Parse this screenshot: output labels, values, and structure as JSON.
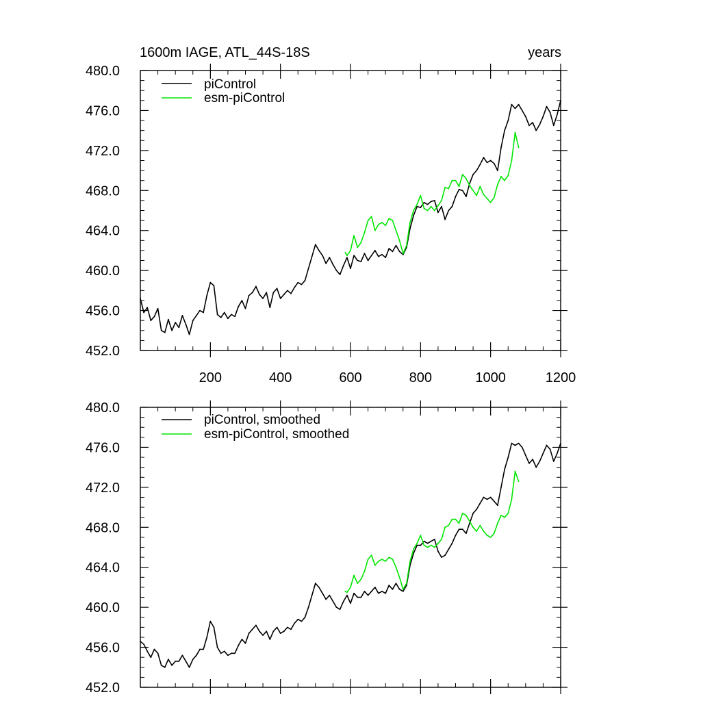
{
  "colors": {
    "picontrol": "#000000",
    "esm_picontrol": "#00e600"
  },
  "chart_data": [
    {
      "type": "line",
      "title_left": "1600m IAGE, ATL_44S-18S",
      "title_right": "years",
      "xlim": [
        0,
        1200
      ],
      "ylim": [
        452,
        480
      ],
      "xticks": [
        200,
        400,
        600,
        800,
        1000,
        1200
      ],
      "xtick_labels": [
        "200",
        "400",
        "600",
        "800",
        "1000",
        "1200"
      ],
      "yticks": [
        452,
        456,
        460,
        464,
        468,
        472,
        476,
        480
      ],
      "ytick_labels": [
        "452.0",
        "456.0",
        "460.0",
        "464.0",
        "468.0",
        "472.0",
        "476.0",
        "480.0"
      ],
      "legend_position": "top-left",
      "series": [
        {
          "name": "piControl",
          "color": "#000000",
          "x": [
            0,
            10,
            20,
            30,
            40,
            50,
            60,
            70,
            80,
            90,
            100,
            110,
            120,
            130,
            140,
            150,
            160,
            170,
            180,
            190,
            200,
            210,
            220,
            230,
            240,
            250,
            260,
            270,
            280,
            290,
            300,
            310,
            320,
            330,
            340,
            350,
            360,
            370,
            380,
            390,
            400,
            410,
            420,
            430,
            440,
            450,
            460,
            470,
            480,
            490,
            500,
            510,
            520,
            530,
            540,
            550,
            560,
            570,
            580,
            590,
            600,
            610,
            620,
            630,
            640,
            650,
            660,
            670,
            680,
            690,
            700,
            710,
            720,
            730,
            740,
            750,
            760,
            770,
            780,
            790,
            800,
            810,
            820,
            830,
            840,
            850,
            860,
            870,
            880,
            890,
            900,
            910,
            920,
            930,
            940,
            950,
            960,
            970,
            980,
            990,
            1000,
            1010,
            1020,
            1030,
            1040,
            1050,
            1060,
            1070,
            1080,
            1090,
            1100,
            1110,
            1120,
            1130,
            1140,
            1150,
            1160,
            1170,
            1180,
            1190,
            1200
          ],
          "y": [
            457.2,
            455.8,
            456.3,
            455.0,
            455.4,
            456.2,
            454.0,
            453.8,
            455.1,
            454.0,
            454.8,
            454.3,
            455.5,
            454.6,
            453.6,
            455.0,
            455.5,
            456.0,
            455.8,
            457.5,
            458.8,
            458.5,
            455.6,
            455.3,
            455.8,
            455.2,
            455.6,
            455.4,
            456.4,
            457.0,
            456.2,
            457.5,
            457.8,
            458.4,
            457.6,
            457.2,
            457.8,
            456.3,
            457.8,
            458.2,
            457.2,
            457.6,
            458.0,
            457.7,
            458.3,
            458.8,
            458.6,
            459.0,
            460.2,
            461.4,
            462.6,
            462.0,
            461.5,
            460.7,
            461.3,
            460.6,
            460.0,
            459.6,
            460.5,
            461.3,
            460.2,
            461.5,
            461.0,
            460.9,
            461.7,
            461.0,
            461.5,
            462.0,
            461.4,
            461.6,
            461.3,
            462.2,
            461.9,
            462.5,
            461.9,
            461.6,
            462.3,
            464.2,
            465.5,
            466.4,
            466.3,
            466.8,
            466.6,
            466.9,
            467.0,
            465.8,
            466.4,
            465.1,
            466.0,
            466.4,
            467.4,
            468.1,
            468.0,
            467.4,
            468.7,
            469.6,
            470.0,
            470.6,
            471.3,
            470.8,
            471.0,
            470.7,
            470.0,
            472.3,
            474.0,
            475.0,
            476.6,
            476.2,
            476.6,
            476.0,
            475.4,
            474.5,
            474.8,
            474.0,
            474.6,
            475.4,
            476.4,
            475.8,
            474.5,
            475.6,
            477.0
          ]
        },
        {
          "name": "esm-piControl",
          "color": "#00e600",
          "x": [
            585,
            590,
            600,
            610,
            620,
            630,
            640,
            650,
            660,
            670,
            680,
            690,
            700,
            710,
            720,
            730,
            740,
            750,
            760,
            770,
            780,
            790,
            800,
            810,
            820,
            830,
            840,
            850,
            860,
            870,
            880,
            890,
            900,
            910,
            920,
            930,
            940,
            950,
            960,
            970,
            980,
            990,
            1000,
            1010,
            1020,
            1030,
            1040,
            1050,
            1060,
            1070,
            1080
          ],
          "y": [
            461.8,
            461.5,
            462.0,
            463.5,
            462.3,
            462.8,
            463.8,
            465.0,
            465.4,
            464.0,
            464.6,
            464.8,
            464.5,
            465.2,
            465.0,
            464.0,
            463.0,
            461.7,
            462.5,
            464.8,
            466.0,
            466.6,
            467.5,
            466.2,
            466.0,
            466.4,
            466.0,
            466.5,
            467.0,
            468.3,
            468.2,
            469.0,
            469.0,
            468.4,
            469.6,
            469.2,
            468.5,
            468.0,
            467.5,
            468.4,
            467.6,
            467.2,
            466.8,
            467.3,
            468.6,
            469.4,
            469.0,
            469.5,
            471.0,
            473.8,
            472.3
          ]
        }
      ]
    },
    {
      "type": "line",
      "xlim": [
        0,
        1200
      ],
      "ylim": [
        452,
        480
      ],
      "xticks": [
        200,
        400,
        600,
        800,
        1000,
        1200
      ],
      "yticks": [
        452,
        456,
        460,
        464,
        468,
        472,
        476,
        480
      ],
      "ytick_labels": [
        "452.0",
        "456.0",
        "460.0",
        "464.0",
        "468.0",
        "472.0",
        "476.0",
        "480.0"
      ],
      "legend_position": "top-left",
      "series": [
        {
          "name": "piControl, smoothed",
          "color": "#000000",
          "x": [
            0,
            10,
            20,
            30,
            40,
            50,
            60,
            70,
            80,
            90,
            100,
            110,
            120,
            130,
            140,
            150,
            160,
            170,
            180,
            190,
            200,
            210,
            220,
            230,
            240,
            250,
            260,
            270,
            280,
            290,
            300,
            310,
            320,
            330,
            340,
            350,
            360,
            370,
            380,
            390,
            400,
            410,
            420,
            430,
            440,
            450,
            460,
            470,
            480,
            490,
            500,
            510,
            520,
            530,
            540,
            550,
            560,
            570,
            580,
            590,
            600,
            610,
            620,
            630,
            640,
            650,
            660,
            670,
            680,
            690,
            700,
            710,
            720,
            730,
            740,
            750,
            760,
            770,
            780,
            790,
            800,
            810,
            820,
            830,
            840,
            850,
            860,
            870,
            880,
            890,
            900,
            910,
            920,
            930,
            940,
            950,
            960,
            970,
            980,
            990,
            1000,
            1010,
            1020,
            1030,
            1040,
            1050,
            1060,
            1070,
            1080,
            1090,
            1100,
            1110,
            1120,
            1130,
            1140,
            1150,
            1160,
            1170,
            1180,
            1190,
            1200
          ],
          "y": [
            456.6,
            456.3,
            455.6,
            455.0,
            455.8,
            455.4,
            454.2,
            454.0,
            454.8,
            454.2,
            454.6,
            454.6,
            455.2,
            454.6,
            454.0,
            454.8,
            455.2,
            455.8,
            455.8,
            457.0,
            458.6,
            458.0,
            456.0,
            455.4,
            455.6,
            455.2,
            455.4,
            455.4,
            456.2,
            456.8,
            456.4,
            457.4,
            457.8,
            458.2,
            457.6,
            457.2,
            457.6,
            456.8,
            457.6,
            458.0,
            457.4,
            457.6,
            458.0,
            457.8,
            458.4,
            458.8,
            458.6,
            459.0,
            460.0,
            461.2,
            462.4,
            462.0,
            461.4,
            460.8,
            461.2,
            460.6,
            460.0,
            459.8,
            460.6,
            461.2,
            460.4,
            461.4,
            461.0,
            461.0,
            461.6,
            461.2,
            461.6,
            462.0,
            461.4,
            461.6,
            461.4,
            462.2,
            461.8,
            462.4,
            461.8,
            461.6,
            462.2,
            464.2,
            465.4,
            466.2,
            466.2,
            466.6,
            466.4,
            466.6,
            466.8,
            465.6,
            465.0,
            465.2,
            465.8,
            466.4,
            467.2,
            467.8,
            467.8,
            467.4,
            468.4,
            469.4,
            469.8,
            470.4,
            471.0,
            470.8,
            471.0,
            470.6,
            470.2,
            472.0,
            473.8,
            475.0,
            476.4,
            476.2,
            476.4,
            476.0,
            475.2,
            474.4,
            474.8,
            474.0,
            474.6,
            475.4,
            476.2,
            475.8,
            474.6,
            475.4,
            476.4
          ]
        },
        {
          "name": "esm-piControl, smoothed",
          "color": "#00e600",
          "x": [
            585,
            590,
            600,
            610,
            620,
            630,
            640,
            650,
            660,
            670,
            680,
            690,
            700,
            710,
            720,
            730,
            740,
            750,
            760,
            770,
            780,
            790,
            800,
            810,
            820,
            830,
            840,
            850,
            860,
            870,
            880,
            890,
            900,
            910,
            920,
            930,
            940,
            950,
            960,
            970,
            980,
            990,
            1000,
            1010,
            1020,
            1030,
            1040,
            1050,
            1060,
            1070,
            1080
          ],
          "y": [
            461.6,
            461.5,
            462.0,
            463.2,
            462.4,
            462.8,
            463.6,
            464.8,
            465.2,
            464.2,
            464.6,
            464.8,
            464.6,
            465.0,
            464.8,
            464.0,
            463.0,
            461.8,
            462.4,
            464.6,
            465.8,
            466.4,
            467.2,
            466.2,
            466.0,
            466.2,
            466.0,
            466.4,
            466.8,
            468.0,
            468.2,
            468.8,
            468.8,
            468.4,
            469.4,
            469.2,
            468.6,
            468.0,
            467.6,
            468.2,
            467.6,
            467.2,
            467.0,
            467.4,
            468.4,
            469.2,
            469.0,
            469.4,
            470.8,
            473.6,
            472.6
          ]
        }
      ]
    }
  ]
}
